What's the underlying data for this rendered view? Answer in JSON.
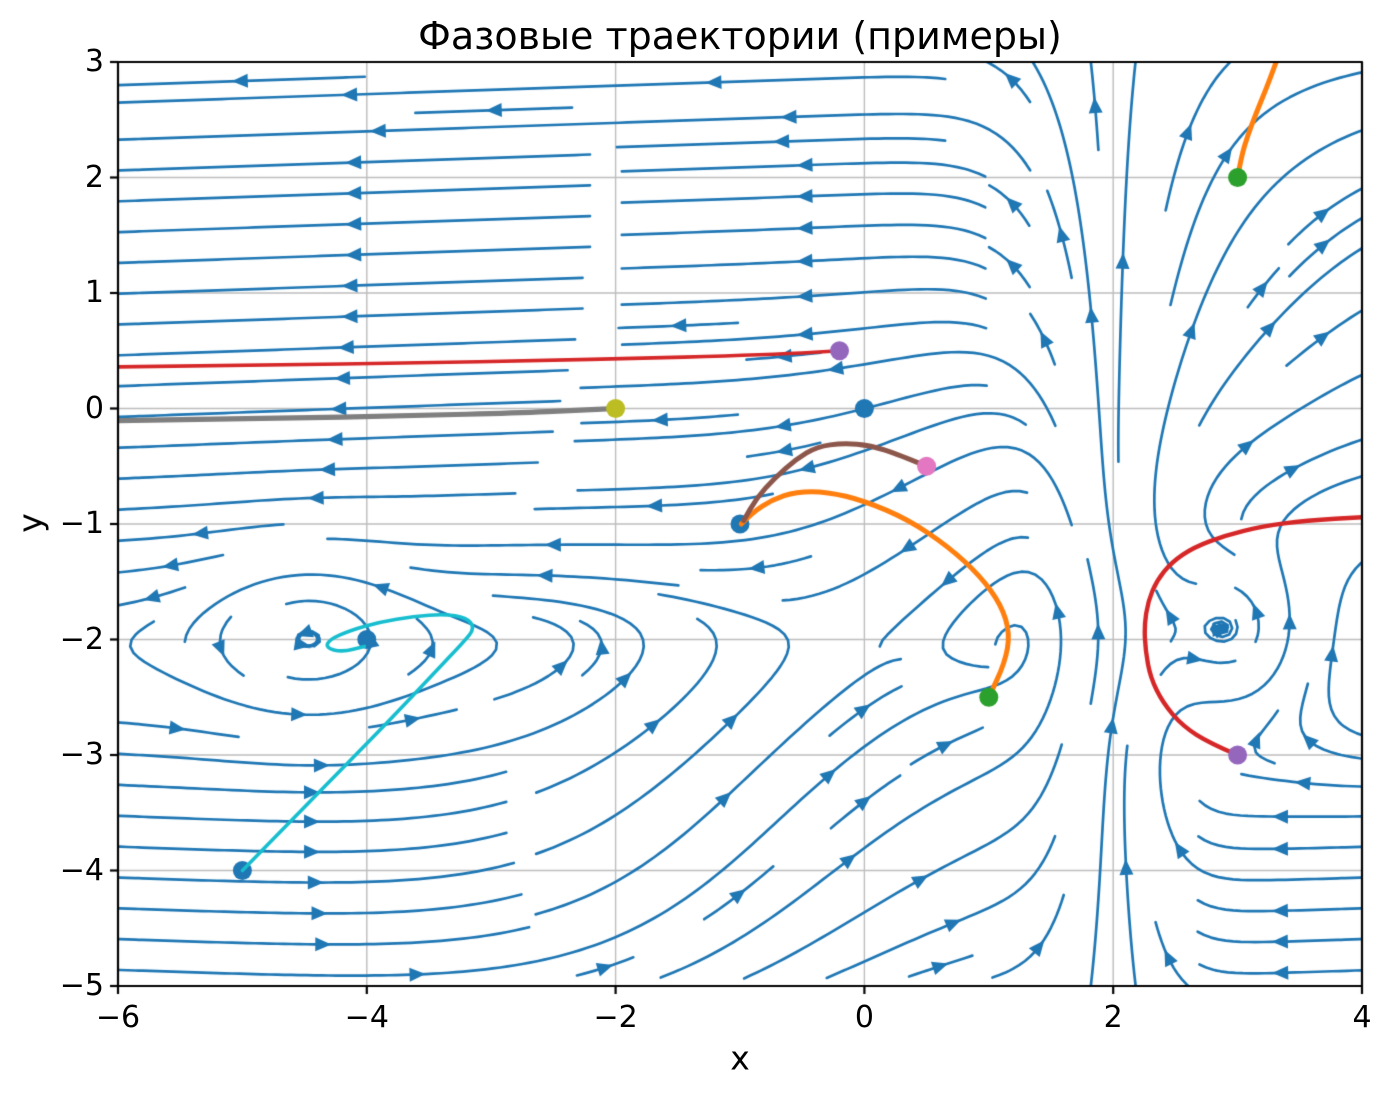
{
  "chart_data": {
    "type": "streamplot",
    "title": "Фазовые траектории (примеры)",
    "xlabel": "x",
    "ylabel": "y",
    "xlim": [
      -6,
      4
    ],
    "ylim": [
      -5,
      3
    ],
    "xticks": [
      -6,
      -4,
      -2,
      0,
      2,
      4
    ],
    "xtick_labels": [
      "−6",
      "−4",
      "−2",
      "0",
      "2",
      "4"
    ],
    "yticks": [
      3,
      2,
      1,
      0,
      -1,
      -2,
      -3,
      -4,
      -5
    ],
    "ytick_labels": [
      "3",
      "2",
      "1",
      "0",
      "−1",
      "−2",
      "−3",
      "−4",
      "−5"
    ],
    "grid": {
      "visible": true,
      "color": "#bdbdbd",
      "linewidth": 1.4
    },
    "spine": {
      "color": "#000000",
      "linewidth": 2.2,
      "tick_length": 8
    },
    "background": "#ffffff",
    "stream": {
      "color": "#1f77b4",
      "linewidth": 2.7,
      "density_grid": 30,
      "arrow_length": 16,
      "arrow_halfwidth": 7,
      "fx": "(-0.55*Math.tanh(0.8*(y+2.05))*Math.tanh(0.9*(2-x)))*(1-0.3*Math.exp(-(x+1.2)*(x+1.2)/6)*Math.exp(-(y+3.6)*(y+3.6)/5)) - 0.9*(y+1.95)*Math.exp(-((x-2.95)*(x-2.95)+(y+1.95)*(y+1.95))/0.8) - 0.5*(y+1.95)*Math.exp(-((x+4.5)*(x+4.5)+(y+1.95)*(y+1.95))/0.55)",
      "fy": "0.85*Math.exp(-(x-2)*(x-2)/(0.3+0.45/(1+Math.exp(-2*y)))) - 0.02 - 0.22*Math.exp(-(x-0.6)*(x-0.6)/1.8)*Math.exp(-(y+0.9)*(y+0.9)/1.8) + 0.35*Math.exp(-(x+0.8)*(x+0.8)/4.5)*Math.exp(-(y+3.8)*(y+3.8)/3.0) + 0.5*Math.exp(-(x-3.2)*(x-3.2)/2.0)*Math.exp(-(y-1.2)*(y-1.2)/3.0) + 0.9*(x-2.95)*Math.exp(-((x-2.95)*(x-2.95)+(y+1.95)*(y+1.95))/0.8) + 0.5*(x+4.5)*Math.exp(-((x+4.5)*(x+4.5)+(y+1.95)*(y+1.95))/0.55)"
    },
    "trajectories": [
      {
        "name": "trajectory-gray",
        "color": "#7f7f7f",
        "linewidth": 5.2,
        "points": [
          [
            -6,
            -0.105
          ],
          [
            -4.8,
            -0.088
          ],
          [
            -3.6,
            -0.062
          ],
          [
            -2.8,
            -0.038
          ],
          [
            -2.3,
            -0.015
          ],
          [
            -2,
            0
          ]
        ]
      },
      {
        "name": "trajectory-red-left",
        "color": "#d62728",
        "linewidth": 3.6,
        "points": [
          [
            -6,
            0.36
          ],
          [
            -4.8,
            0.375
          ],
          [
            -3.6,
            0.395
          ],
          [
            -2.6,
            0.415
          ],
          [
            -1.8,
            0.435
          ],
          [
            -1.1,
            0.455
          ],
          [
            -0.6,
            0.475
          ],
          [
            -0.2,
            0.5
          ]
        ]
      },
      {
        "name": "trajectory-orange-left",
        "color": "#ff7f0e",
        "linewidth": 5,
        "points": [
          [
            -0.99,
            -1.0
          ],
          [
            -0.9,
            -0.9
          ],
          [
            -0.74,
            -0.79
          ],
          [
            -0.55,
            -0.72
          ],
          [
            -0.3,
            -0.72
          ],
          [
            0.0,
            -0.8
          ],
          [
            0.35,
            -0.96
          ],
          [
            0.68,
            -1.2
          ],
          [
            0.93,
            -1.45
          ],
          [
            1.1,
            -1.7
          ],
          [
            1.17,
            -1.95
          ],
          [
            1.13,
            -2.2
          ],
          [
            1.0,
            -2.5
          ]
        ]
      },
      {
        "name": "trajectory-brown",
        "color": "#8c564b",
        "linewidth": 5,
        "points": [
          [
            0.5,
            -0.5
          ],
          [
            0.28,
            -0.4
          ],
          [
            0.05,
            -0.32
          ],
          [
            -0.17,
            -0.3
          ],
          [
            -0.38,
            -0.33
          ],
          [
            -0.55,
            -0.44
          ],
          [
            -0.72,
            -0.6
          ],
          [
            -0.87,
            -0.78
          ],
          [
            -0.97,
            -0.97
          ]
        ]
      },
      {
        "name": "trajectory-cyan",
        "color": "#17becf",
        "linewidth": 3.6,
        "points": [
          [
            -5,
            -4
          ],
          [
            -4.6,
            -3.56
          ],
          [
            -4.2,
            -3.12
          ],
          [
            -3.8,
            -2.68
          ],
          [
            -3.45,
            -2.28
          ],
          [
            -3.22,
            -2.02
          ],
          [
            -3.13,
            -1.9
          ],
          [
            -3.2,
            -1.81
          ],
          [
            -3.38,
            -1.78
          ],
          [
            -3.62,
            -1.8
          ],
          [
            -3.9,
            -1.85
          ],
          [
            -4.13,
            -1.92
          ],
          [
            -4.3,
            -2.0
          ],
          [
            -4.33,
            -2.07
          ],
          [
            -4.2,
            -2.11
          ],
          [
            -4.02,
            -2.06
          ]
        ]
      },
      {
        "name": "trajectory-red-right",
        "color": "#d62728",
        "linewidth": 4.4,
        "points": [
          [
            3,
            -3
          ],
          [
            2.78,
            -2.9
          ],
          [
            2.56,
            -2.75
          ],
          [
            2.4,
            -2.55
          ],
          [
            2.3,
            -2.33
          ],
          [
            2.26,
            -2.1
          ],
          [
            2.25,
            -1.88
          ],
          [
            2.28,
            -1.67
          ],
          [
            2.35,
            -1.49
          ],
          [
            2.47,
            -1.33
          ],
          [
            2.65,
            -1.2
          ],
          [
            2.9,
            -1.1
          ],
          [
            3.2,
            -1.02
          ],
          [
            3.55,
            -0.97
          ],
          [
            4.02,
            -0.94
          ]
        ]
      },
      {
        "name": "trajectory-orange-right",
        "color": "#ff7f0e",
        "linewidth": 5,
        "points": [
          [
            3,
            2
          ],
          [
            3.03,
            2.18
          ],
          [
            3.08,
            2.36
          ],
          [
            3.15,
            2.56
          ],
          [
            3.23,
            2.77
          ],
          [
            3.3,
            2.97
          ],
          [
            3.33,
            3.06
          ]
        ]
      }
    ],
    "markers": [
      {
        "x": 0,
        "y": 0,
        "color": "#1f77b4",
        "zorder": 2
      },
      {
        "x": -1,
        "y": -1,
        "color": "#1f77b4",
        "zorder": 2
      },
      {
        "x": -4,
        "y": -2,
        "color": "#1f77b4",
        "zorder": 2
      },
      {
        "x": -5,
        "y": -4,
        "color": "#1f77b4",
        "zorder": 2
      },
      {
        "x": -0.2,
        "y": 0.5,
        "color": "#9467bd",
        "zorder": 4
      },
      {
        "x": -2,
        "y": 0,
        "color": "#bcbd22",
        "zorder": 4
      },
      {
        "x": 0.5,
        "y": -0.5,
        "color": "#e377c2",
        "zorder": 4
      },
      {
        "x": 1,
        "y": -2.5,
        "color": "#2ca02c",
        "zorder": 4
      },
      {
        "x": 3,
        "y": 2,
        "color": "#2ca02c",
        "zorder": 4
      },
      {
        "x": 3,
        "y": -3,
        "color": "#9467bd",
        "zorder": 4
      }
    ],
    "marker_radius": 9.5
  }
}
